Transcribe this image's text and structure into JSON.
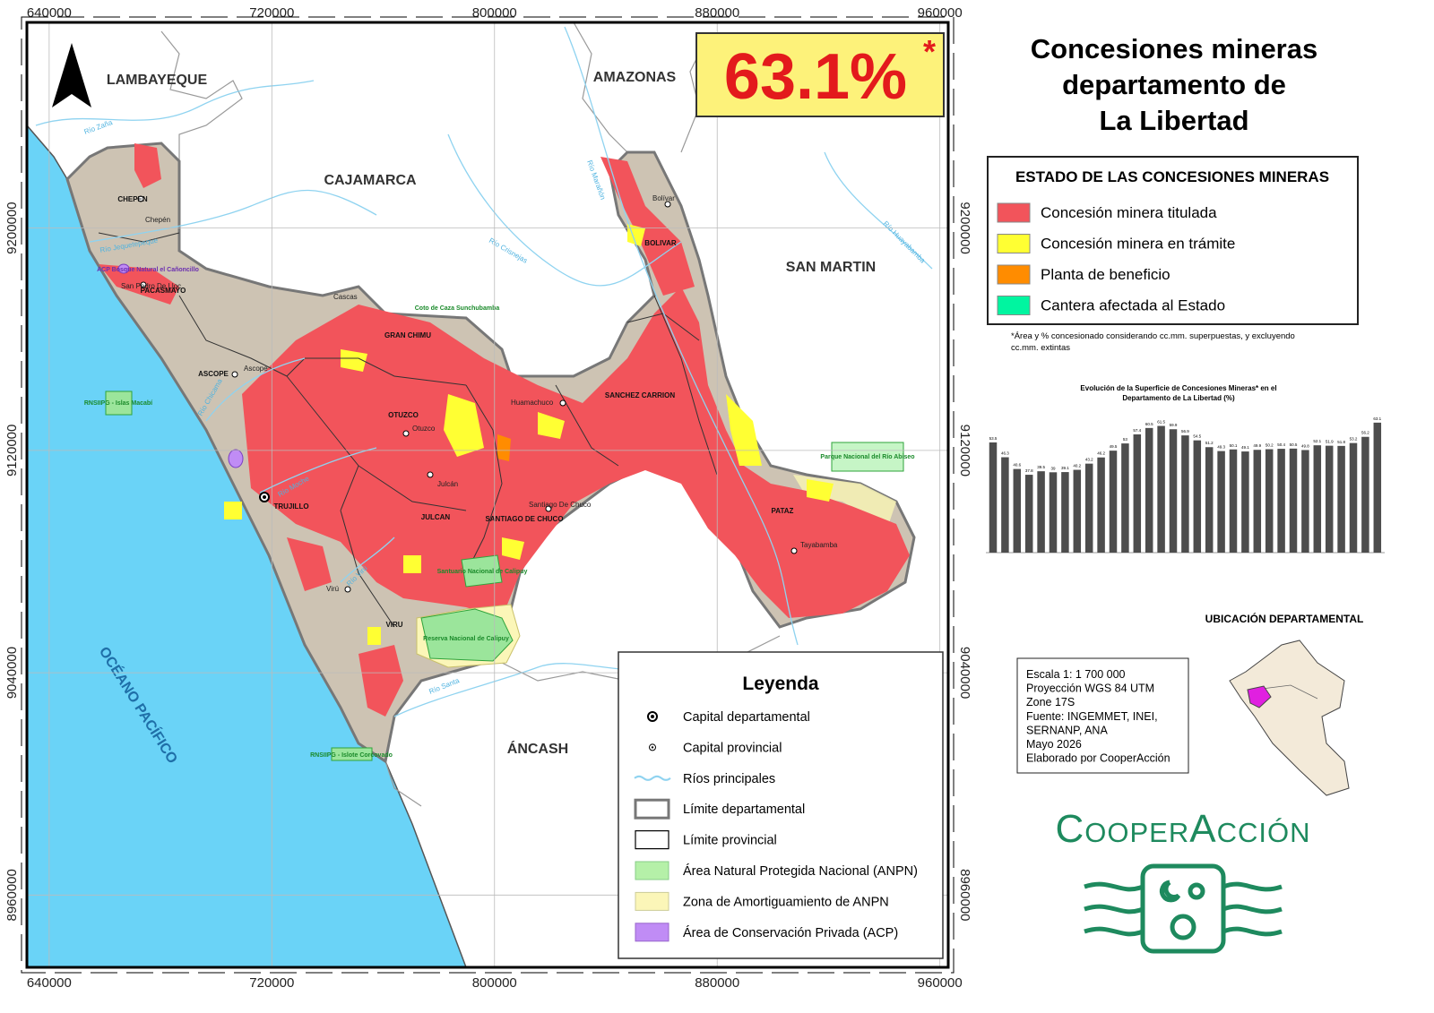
{
  "title": [
    "Concesiones mineras",
    "departamento de",
    "La Libertad"
  ],
  "headline": {
    "text": "63.1%",
    "mark": "*"
  },
  "status_legend": {
    "title": "ESTADO DE LAS CONCESIONES MINERAS",
    "items": [
      {
        "label": "Concesión minera titulada",
        "color": "#f2545b"
      },
      {
        "label": "Concesión minera en trámite",
        "color": "#ffff33"
      },
      {
        "label": "Planta de beneficio",
        "color": "#ff8c00"
      },
      {
        "label": "Cantera afectada al Estado",
        "color": "#00f5a0"
      }
    ]
  },
  "footnote": [
    "*Área y % concesionado considerando cc.mm. superpuestas, y excluyendo",
    "cc.mm. extintas"
  ],
  "chart_data": {
    "type": "bar",
    "title": [
      "Evolución de la Superficie de Concesiones Mineras* en el",
      "Departamento de La Libertad (%)"
    ],
    "values": [
      53.5,
      46.3,
      40.6,
      37.8,
      39.5,
      39.0,
      39.1,
      40.2,
      43.2,
      46.2,
      49.5,
      53.0,
      57.4,
      60.5,
      61.5,
      59.9,
      56.9,
      54.5,
      51.2,
      49.3,
      50.1,
      49.1,
      49.9,
      50.2,
      50.4,
      50.5,
      49.8,
      52.1,
      51.9,
      51.8,
      53.2,
      56.2,
      63.1
    ],
    "color": "#4d4d4d",
    "ylim": [
      0,
      70
    ]
  },
  "location_title": "UBICACIÓN DEPARTAMENTAL",
  "info": [
    "Escala 1: 1 700 000",
    "Proyección WGS 84 UTM",
    "Zone 17S",
    "Fuente: INGEMMET, INEI,",
    "SERNANP, ANA",
    "Mayo 2026",
    "Elaborado por CooperAcción"
  ],
  "logo": "CooperAcción",
  "legend": {
    "title": "Leyenda",
    "items": [
      "Capital departamental",
      "Capital provincial",
      "Ríos principales",
      "Límite departamental",
      "Límite provincial",
      "Área Natural Protegida Nacional (ANPN)",
      "Zona de Amortiguamiento de ANPN",
      "Área de Conservación Privada (ACP)"
    ]
  },
  "map": {
    "xlim": [
      632000,
      963000
    ],
    "ylim": [
      8934000,
      9274000
    ],
    "xticks": [
      640000,
      720000,
      800000,
      880000,
      960000
    ],
    "yticks": [
      8960000,
      9040000,
      9120000,
      9200000
    ],
    "regions": [
      "LAMBAYEQUE",
      "CAJAMARCA",
      "AMAZONAS",
      "SAN MARTIN",
      "ÁNCASH",
      "OCÉANO PACÍFICO"
    ],
    "provinces": [
      "CHEPEN",
      "PACASMAYO",
      "ASCOPE",
      "GRAN CHIMU",
      "OTUZCO",
      "TRUJILLO",
      "JULCAN",
      "SANTIAGO DE CHUCO",
      "SANCHEZ CARRION",
      "BOLIVAR",
      "PATAZ",
      "VIRU"
    ],
    "towns": [
      "Chepén",
      "San Pedro De Lloc",
      "Ascope",
      "Cascas",
      "Otuzco",
      "Julcán",
      "Huamachuco",
      "Santiago De Chuco",
      "Bolívar",
      "Tayabamba",
      "Virú"
    ],
    "rivers": [
      "Río Zaña",
      "Río Jequetepeque",
      "Río Chicama",
      "Río Crisnejas",
      "Río Marañón",
      "Río Huayabamba",
      "Río Santa",
      "Río Moche",
      "Río Virú"
    ],
    "protected": [
      "Coto de Caza Sunchubamba",
      "Santuario Nacional de Calipuy",
      "Reserva Nacional de Calipuy",
      "Parque Nacional del Río Abiseo",
      "RNSIIPG - Islas Macabí",
      "RNSIIPG - Islote Corcovado",
      "ACP Bosque Natural el Cañoncillo"
    ]
  }
}
